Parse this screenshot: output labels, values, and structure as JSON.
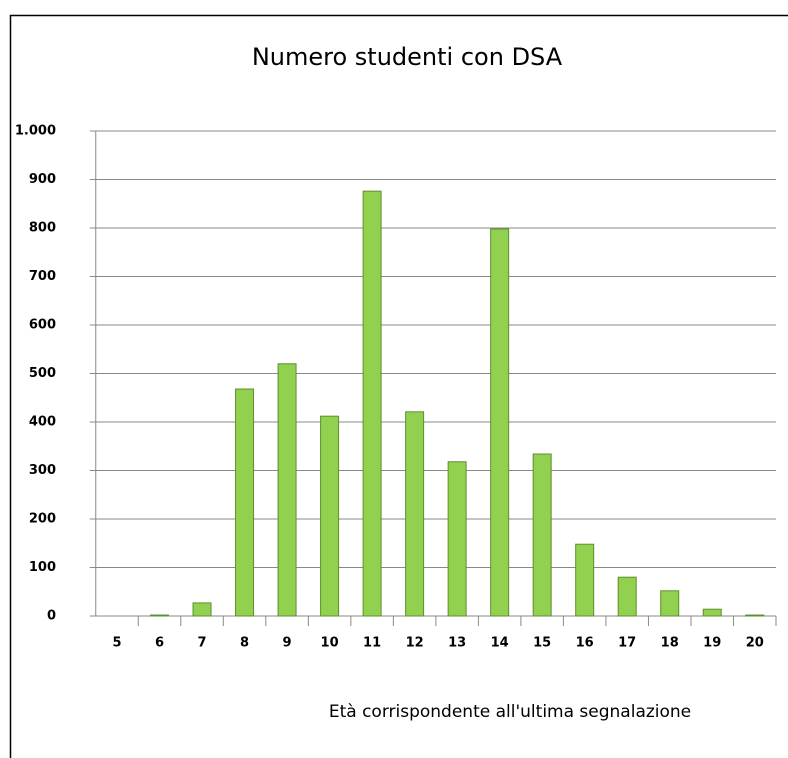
{
  "chart_data": {
    "type": "bar",
    "title": "Numero studenti con DSA",
    "x_label": "Età corrispondente all'ultima segnalazione",
    "categories": [
      "5",
      "6",
      "7",
      "8",
      "9",
      "10",
      "11",
      "12",
      "13",
      "14",
      "15",
      "16",
      "17",
      "18",
      "19",
      "20"
    ],
    "values": [
      0,
      2,
      27,
      468,
      520,
      412,
      876,
      421,
      318,
      798,
      334,
      148,
      80,
      52,
      14,
      2
    ],
    "color": "#92d050",
    "ylim": [
      0,
      1000
    ],
    "yticks": [
      0,
      100,
      200,
      300,
      400,
      500,
      600,
      700,
      800,
      900,
      {
        "value": 1000,
        "label": "1.000"
      }
    ],
    "grid": true
  }
}
